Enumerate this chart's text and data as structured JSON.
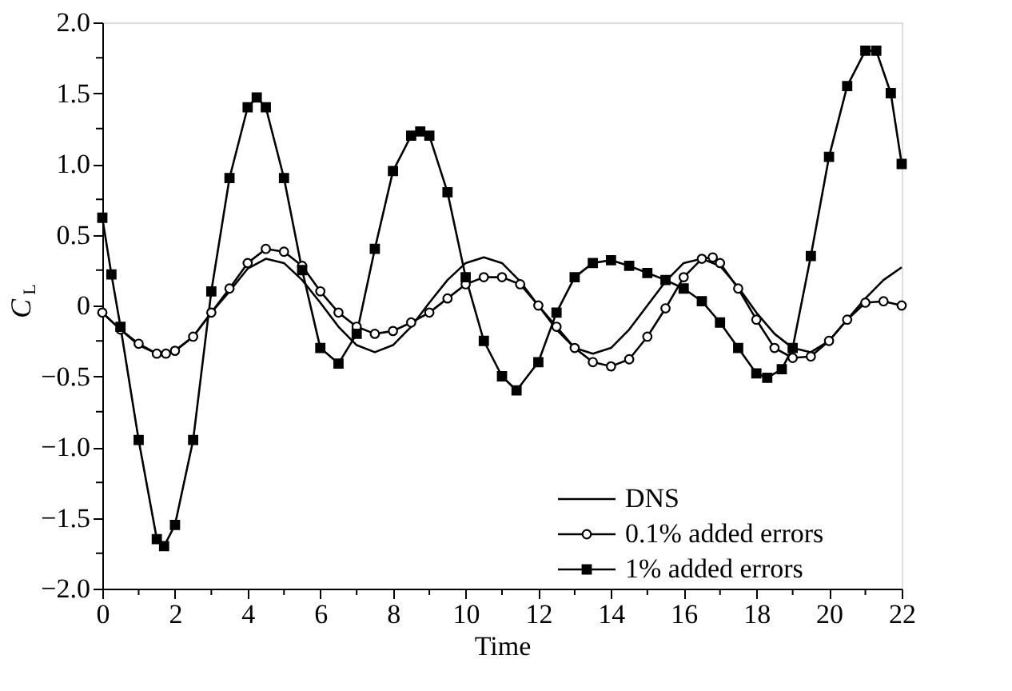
{
  "chart_data": {
    "type": "line",
    "xlabel": "Time",
    "ylabel": "C$_{L}$",
    "legend": "bottom right",
    "grid": false,
    "line_style": "solid",
    "xlim": [
      0,
      22
    ],
    "ylim": [
      -2.0,
      2.0
    ],
    "xticks": [
      0,
      {
        "value": 1,
        "label": null
      },
      2,
      {
        "value": 3,
        "label": null
      },
      4,
      {
        "value": 5,
        "label": null
      },
      6,
      {
        "value": 7,
        "label": null
      },
      8,
      {
        "value": 9,
        "label": null
      },
      10,
      {
        "value": 11,
        "label": null
      },
      12,
      {
        "value": 13,
        "label": null
      },
      14,
      {
        "value": 15,
        "label": null
      },
      16,
      {
        "value": 17,
        "label": null
      },
      18,
      {
        "value": 19,
        "label": null
      },
      20,
      {
        "value": 21,
        "label": null
      },
      22
    ],
    "yticks": [
      {
        "value": -2.0,
        "label": "−2.0"
      },
      {
        "value": -1.75,
        "label": null
      },
      {
        "value": -1.5,
        "label": "−1.5"
      },
      {
        "value": -1.25,
        "label": null
      },
      {
        "value": -1.0,
        "label": "−1.0"
      },
      {
        "value": -0.75,
        "label": null
      },
      {
        "value": -0.5,
        "label": "−0.5"
      },
      {
        "value": -0.25,
        "label": null
      },
      0,
      {
        "value": 0.25,
        "label": null
      },
      {
        "value": 0.5,
        "label": "0.5"
      },
      {
        "value": 0.75,
        "label": null
      },
      {
        "value": 1.0,
        "label": "1.0"
      },
      {
        "value": 1.25,
        "label": null
      },
      {
        "value": 1.5,
        "label": "1.5"
      },
      {
        "value": 1.75,
        "label": null
      },
      {
        "value": 2.0,
        "label": "2.0"
      }
    ],
    "series": [
      {
        "name": "DNS",
        "color": "#000000",
        "marker": "none",
        "x": [
          0,
          0.5,
          1,
          1.5,
          2,
          2.5,
          3,
          3.5,
          4,
          4.5,
          5,
          5.5,
          6,
          6.5,
          7,
          7.5,
          8,
          8.5,
          9,
          9.5,
          10,
          10.5,
          11,
          11.5,
          12,
          12.5,
          13,
          13.5,
          14,
          14.5,
          15,
          15.5,
          16,
          16.5,
          17,
          17.5,
          18,
          18.5,
          19,
          19.5,
          20,
          20.5,
          21,
          21.5,
          22
        ],
        "values": [
          -0.05,
          -0.17,
          -0.28,
          -0.34,
          -0.32,
          -0.22,
          -0.05,
          0.1,
          0.26,
          0.33,
          0.3,
          0.18,
          0.02,
          -0.15,
          -0.28,
          -0.33,
          -0.28,
          -0.15,
          0.02,
          0.18,
          0.3,
          0.34,
          0.3,
          0.17,
          0.0,
          -0.17,
          -0.3,
          -0.34,
          -0.3,
          -0.17,
          0.0,
          0.17,
          0.3,
          0.33,
          0.28,
          0.13,
          -0.05,
          -0.2,
          -0.3,
          -0.33,
          -0.25,
          -0.1,
          0.05,
          0.18,
          0.27
        ]
      },
      {
        "name": "0.1% added errors",
        "color": "#000000",
        "marker": "circle",
        "x": [
          0,
          0.5,
          1,
          1.5,
          1.75,
          2,
          2.5,
          3,
          3.5,
          4,
          4.5,
          5,
          5.5,
          6,
          6.5,
          7,
          7.5,
          8,
          8.5,
          9,
          9.5,
          10,
          10.5,
          11,
          11.5,
          12,
          12.5,
          13,
          13.5,
          14,
          14.5,
          15,
          15.5,
          16,
          16.5,
          16.8,
          17,
          17.5,
          18,
          18.5,
          19,
          19.5,
          20,
          20.5,
          21,
          21.5,
          22
        ],
        "values": [
          -0.05,
          -0.17,
          -0.27,
          -0.34,
          -0.34,
          -0.32,
          -0.22,
          -0.05,
          0.12,
          0.3,
          0.4,
          0.38,
          0.28,
          0.1,
          -0.05,
          -0.15,
          -0.2,
          -0.18,
          -0.12,
          -0.05,
          0.05,
          0.15,
          0.2,
          0.2,
          0.15,
          0.0,
          -0.15,
          -0.3,
          -0.4,
          -0.43,
          -0.38,
          -0.22,
          -0.02,
          0.2,
          0.33,
          0.34,
          0.3,
          0.12,
          -0.1,
          -0.3,
          -0.37,
          -0.36,
          -0.25,
          -0.1,
          0.02,
          0.03,
          0.0
        ]
      },
      {
        "name": "1% added errors",
        "color": "#000000",
        "marker": "square",
        "x": [
          0,
          0.25,
          0.5,
          1,
          1.5,
          1.7,
          2,
          2.5,
          3,
          3.5,
          4,
          4.25,
          4.5,
          5,
          5.5,
          6,
          6.5,
          7,
          7.5,
          8,
          8.5,
          8.75,
          9,
          9.5,
          10,
          10.5,
          11,
          11.4,
          12,
          12.5,
          13,
          13.5,
          14,
          14.5,
          15,
          15.5,
          16,
          16.5,
          17,
          17.5,
          18,
          18.3,
          18.7,
          19,
          19.5,
          20,
          20.5,
          21,
          21.3,
          21.7,
          22
        ],
        "values": [
          0.62,
          0.22,
          -0.15,
          -0.95,
          -1.65,
          -1.7,
          -1.55,
          -0.95,
          0.1,
          0.9,
          1.4,
          1.47,
          1.4,
          0.9,
          0.25,
          -0.3,
          -0.41,
          -0.2,
          0.4,
          0.95,
          1.2,
          1.23,
          1.2,
          0.8,
          0.2,
          -0.25,
          -0.5,
          -0.6,
          -0.4,
          -0.05,
          0.2,
          0.3,
          0.32,
          0.28,
          0.23,
          0.18,
          0.12,
          0.03,
          -0.12,
          -0.3,
          -0.48,
          -0.51,
          -0.45,
          -0.3,
          0.35,
          1.05,
          1.55,
          1.8,
          1.8,
          1.5,
          1.0
        ]
      }
    ]
  }
}
